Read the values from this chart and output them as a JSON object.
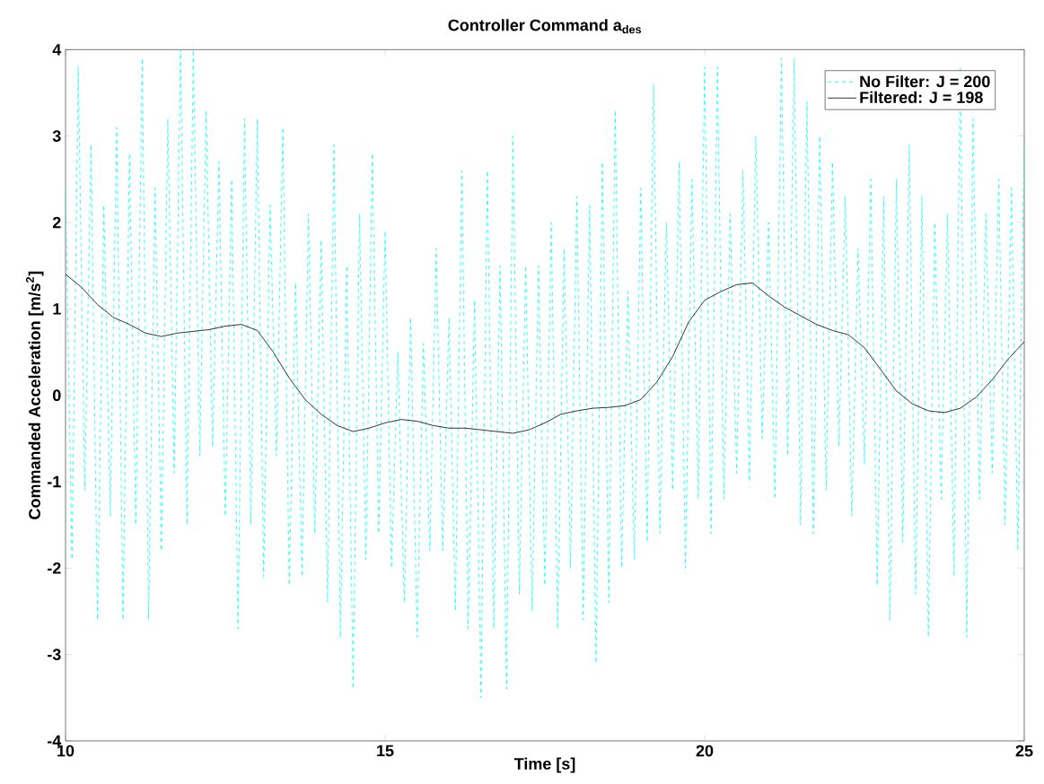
{
  "chart_data": {
    "type": "line",
    "title": "Controller Command a$_{des}$",
    "xlabel": "Time [s]",
    "ylabel": "Commanded Acceleration [m/s$^{2}$]",
    "xlim": [
      10,
      25
    ],
    "ylim": [
      -4,
      4
    ],
    "xticks": [
      10,
      15,
      20,
      25
    ],
    "yticks": [
      -4,
      -3,
      -2,
      -1,
      0,
      1,
      2,
      3,
      4
    ],
    "grid": false,
    "legend": "top right",
    "marker": "none",
    "series": [
      {
        "name": "No Filter: J = 200",
        "color": "#00ffff",
        "line_style": "dashed",
        "x": [
          10.0,
          10.1,
          10.2,
          10.3,
          10.4,
          10.5,
          10.6,
          10.7,
          10.8,
          10.9,
          11.0,
          11.1,
          11.2,
          11.3,
          11.4,
          11.5,
          11.6,
          11.7,
          11.8,
          11.9,
          12.0,
          12.1,
          12.2,
          12.3,
          12.4,
          12.5,
          12.6,
          12.7,
          12.8,
          12.9,
          13.0,
          13.1,
          13.2,
          13.3,
          13.4,
          13.5,
          13.6,
          13.7,
          13.8,
          13.9,
          14.0,
          14.1,
          14.2,
          14.3,
          14.4,
          14.5,
          14.6,
          14.7,
          14.8,
          14.9,
          15.0,
          15.1,
          15.2,
          15.3,
          15.4,
          15.5,
          15.6,
          15.7,
          15.8,
          15.9,
          16.0,
          16.1,
          16.2,
          16.3,
          16.4,
          16.5,
          16.6,
          16.7,
          16.8,
          16.9,
          17.0,
          17.1,
          17.2,
          17.3,
          17.4,
          17.5,
          17.6,
          17.7,
          17.8,
          17.9,
          18.0,
          18.1,
          18.2,
          18.3,
          18.4,
          18.5,
          18.6,
          18.7,
          18.8,
          18.9,
          19.0,
          19.1,
          19.2,
          19.3,
          19.4,
          19.5,
          19.6,
          19.7,
          19.8,
          19.9,
          20.0,
          20.1,
          20.2,
          20.3,
          20.4,
          20.5,
          20.6,
          20.7,
          20.8,
          20.9,
          21.0,
          21.1,
          21.2,
          21.3,
          21.4,
          21.5,
          21.6,
          21.7,
          21.8,
          21.9,
          22.0,
          22.1,
          22.2,
          22.3,
          22.4,
          22.5,
          22.6,
          22.7,
          22.8,
          22.9,
          23.0,
          23.1,
          23.2,
          23.3,
          23.4,
          23.5,
          23.6,
          23.7,
          23.8,
          23.9,
          24.0,
          24.1,
          24.2,
          24.3,
          24.4,
          24.5,
          24.6,
          24.7,
          24.8,
          24.9,
          25.0
        ],
        "values": [
          2.4,
          -1.9,
          3.8,
          -1.1,
          2.9,
          -2.6,
          2.2,
          -1.4,
          3.1,
          -2.6,
          2.8,
          -1.5,
          3.9,
          -2.6,
          2.4,
          -1.8,
          3.2,
          -0.9,
          4.0,
          -1.5,
          4.0,
          -0.7,
          3.3,
          -0.6,
          2.7,
          -1.4,
          2.5,
          -2.7,
          3.2,
          -1.5,
          3.2,
          -2.1,
          2.2,
          -0.7,
          3.1,
          -2.2,
          1.3,
          -2.1,
          2.1,
          -1.6,
          1.8,
          -2.4,
          2.9,
          -2.8,
          1.5,
          -3.4,
          2.1,
          -1.9,
          2.8,
          -1.6,
          1.9,
          -2.0,
          0.5,
          -2.4,
          0.9,
          -2.8,
          0.6,
          -1.8,
          1.7,
          -1.8,
          0.9,
          -2.5,
          2.6,
          -2.7,
          1.1,
          -3.5,
          2.6,
          -2.7,
          1.5,
          -3.4,
          3.0,
          -2.3,
          1.5,
          -2.5,
          1.5,
          -2.2,
          2.0,
          -2.7,
          1.7,
          -2.0,
          2.3,
          -2.6,
          2.2,
          -3.1,
          2.7,
          -2.4,
          3.3,
          -2.0,
          1.2,
          -1.9,
          2.4,
          -1.7,
          3.6,
          -1.6,
          2.0,
          -1.1,
          2.7,
          -2.0,
          2.5,
          -1.2,
          3.8,
          -1.6,
          3.8,
          -1.2,
          2.1,
          -0.9,
          2.6,
          -1.0,
          3.0,
          -0.5,
          2.0,
          -1.2,
          3.9,
          -0.7,
          3.9,
          -1.5,
          3.4,
          -1.6,
          3.0,
          -1.1,
          2.7,
          -0.6,
          2.3,
          -1.4,
          1.7,
          -0.8,
          2.5,
          -2.2,
          2.3,
          -2.6,
          2.5,
          -1.7,
          2.9,
          -2.3,
          2.3,
          -2.8,
          2.0,
          -1.2,
          2.1,
          -2.1,
          3.8,
          -2.8,
          3.2,
          -1.2,
          2.1,
          -0.9,
          2.5,
          -1.5,
          2.4,
          -1.8,
          3.0
        ]
      },
      {
        "name": "Filtered: J = 198",
        "color": "#000000",
        "line_style": "solid",
        "x": [
          10.0,
          10.25,
          10.5,
          10.75,
          11.0,
          11.25,
          11.5,
          11.75,
          12.0,
          12.25,
          12.5,
          12.75,
          13.0,
          13.25,
          13.5,
          13.75,
          14.0,
          14.25,
          14.5,
          14.75,
          15.0,
          15.25,
          15.5,
          15.75,
          16.0,
          16.25,
          16.5,
          16.75,
          17.0,
          17.25,
          17.5,
          17.75,
          18.0,
          18.25,
          18.5,
          18.75,
          19.0,
          19.25,
          19.5,
          19.75,
          20.0,
          20.25,
          20.5,
          20.75,
          21.0,
          21.25,
          21.5,
          21.75,
          22.0,
          22.25,
          22.5,
          22.75,
          23.0,
          23.25,
          23.5,
          23.75,
          24.0,
          24.25,
          24.5,
          24.75,
          25.0
        ],
        "values": [
          1.4,
          1.25,
          1.05,
          0.9,
          0.82,
          0.72,
          0.68,
          0.72,
          0.74,
          0.76,
          0.8,
          0.82,
          0.75,
          0.5,
          0.2,
          -0.05,
          -0.22,
          -0.35,
          -0.42,
          -0.38,
          -0.32,
          -0.28,
          -0.3,
          -0.35,
          -0.38,
          -0.38,
          -0.4,
          -0.42,
          -0.44,
          -0.4,
          -0.32,
          -0.22,
          -0.18,
          -0.15,
          -0.14,
          -0.12,
          -0.05,
          0.15,
          0.45,
          0.85,
          1.1,
          1.2,
          1.28,
          1.3,
          1.15,
          1.02,
          0.92,
          0.82,
          0.75,
          0.7,
          0.55,
          0.3,
          0.05,
          -0.1,
          -0.18,
          -0.2,
          -0.15,
          -0.02,
          0.18,
          0.42,
          0.62
        ]
      }
    ]
  }
}
